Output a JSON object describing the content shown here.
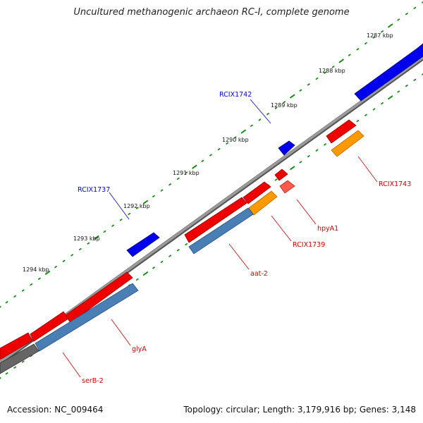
{
  "title": "Uncultured methanogenic archaeon RC-I, complete genome",
  "footer": {
    "accession": "Accession: NC_009464",
    "summary": "Topology: circular; Length: 3,179,916 bp; Genes: 3,148"
  },
  "colors": {
    "backbone": "#808080",
    "tick": "#1a8a1a",
    "forward_gene": "#0000ee",
    "reverse_gene": "#ee0000",
    "cds_steel": "#4a7fb5",
    "cds_orange": "#ff9900",
    "cds_grey": "#666666",
    "label_blue": "#0000ee",
    "label_red": "#cc0000"
  },
  "scale_labels": [
    "1287 kbp",
    "1288 kbp",
    "1289 kbp",
    "1290 kbp",
    "1291 kbp",
    "1292 kbp",
    "1293 kbp",
    "1294 kbp"
  ],
  "genes": [
    {
      "name": "RCIX1742",
      "strand": "forward",
      "color": "#0000ee"
    },
    {
      "name": "RCIX1737",
      "strand": "forward",
      "color": "#0000ee"
    },
    {
      "name": "RCIX1743",
      "strand": "reverse",
      "color": "#cc0000"
    },
    {
      "name": "hpyA1",
      "strand": "reverse",
      "color": "#cc0000"
    },
    {
      "name": "RCIX1739",
      "strand": "reverse",
      "color": "#cc0000"
    },
    {
      "name": "aat-2",
      "strand": "reverse",
      "color": "#cc0000"
    },
    {
      "name": "glyA",
      "strand": "reverse",
      "color": "#cc0000"
    },
    {
      "name": "serB-2",
      "strand": "reverse",
      "color": "#cc0000"
    }
  ]
}
